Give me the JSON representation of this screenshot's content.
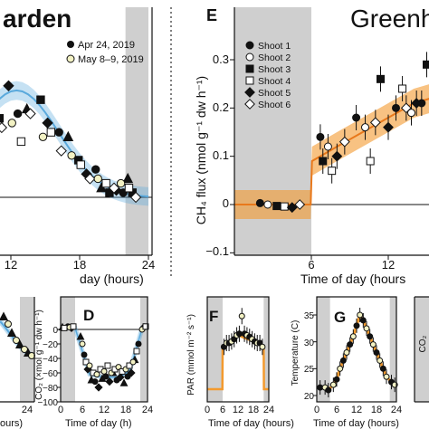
{
  "panels": {
    "garden": {
      "title": "arden",
      "xlabel": "day (hours)",
      "xticks": [
        "12",
        "18",
        "24"
      ],
      "legend": [
        "Apr 24, 2019",
        "May 8–9, 2019"
      ]
    },
    "E": {
      "letter": "E",
      "title": "Greenh",
      "ylabel": "CH₄ flux (nmol g⁻¹ dw h⁻¹)",
      "xlabel": "Time of day (hours",
      "xticks": [
        "6",
        "12"
      ],
      "yticks": [
        "0.3",
        "0.2",
        "0.1",
        "0",
        "−0.1"
      ],
      "legend": [
        "Shoot 1",
        "Shoot 2",
        "Shoot 3",
        "Shoot 4",
        "Shoot 5",
        "Shoot 6"
      ]
    },
    "partial": {
      "xlabel": "ours)",
      "xticks": [
        "24"
      ]
    },
    "D": {
      "letter": "D",
      "ylabel": "CO₂ (×mol g⁻¹ dw h⁻¹)",
      "xlabel": "Time of day (h)",
      "xticks": [
        "0",
        "6",
        "12",
        "18",
        "24"
      ],
      "yticks": [
        "0",
        "−20",
        "−40",
        "−60",
        "−80",
        "−100"
      ]
    },
    "F": {
      "letter": "F",
      "ylabel": "PAR (mmol m⁻² s⁻¹)",
      "xlabel": "Time of day (hours)",
      "xticks": [
        "0",
        "6",
        "12",
        "18",
        "24"
      ]
    },
    "G": {
      "letter": "G",
      "ylabel": "Temperature (C)",
      "xlabel": "Time of day (hours)",
      "xticks": [
        "0",
        "6",
        "12",
        "18",
        "24"
      ],
      "yticks": [
        "35",
        "30",
        "25",
        "20"
      ]
    },
    "H": {
      "ylabel": "CO₂"
    }
  },
  "chart_data": [
    {
      "panel": "garden (partial)",
      "type": "scatter",
      "x_range_visible": [
        9,
        24
      ],
      "y_range_visible": [
        -0.02,
        0.33
      ],
      "shaded_night": [
        22,
        24
      ],
      "fit_color": "#5aa9dc",
      "series": [
        {
          "name": "Apr 24, 2019",
          "marker": "filled",
          "x": [
            9.8,
            10.3,
            11.0,
            11.8,
            12.6,
            13.4,
            14.6,
            15.2,
            16.2,
            17.0,
            17.9,
            18.6,
            19.4,
            19.9,
            20.6,
            21.2,
            21.8,
            22.2,
            22.6
          ],
          "y": [
            0.26,
            0.2,
            0.17,
            0.24,
            0.18,
            0.19,
            0.21,
            0.16,
            0.14,
            0.13,
            0.08,
            0.05,
            0.06,
            0.02,
            0.01,
            0.015,
            0.01,
            0.04,
            0.01
          ]
        },
        {
          "name": "May 8–9, 2019",
          "marker": "open",
          "x": [
            9.7,
            10.4,
            11.2,
            12.1,
            12.9,
            13.7,
            14.8,
            15.5,
            16.4,
            17.3,
            18.1,
            18.9,
            19.6,
            20.3,
            21.0,
            21.6,
            22.3,
            22.9
          ],
          "y": [
            0.21,
            0.23,
            0.15,
            0.16,
            0.12,
            0.18,
            0.13,
            0.14,
            0.1,
            0.09,
            0.07,
            0.04,
            0.04,
            0.03,
            0.02,
            0.03,
            0.02,
            0.0
          ]
        }
      ]
    },
    {
      "panel": "E",
      "type": "scatter",
      "title": "Greenh",
      "xlabel": "Time of day (hours",
      "ylabel": "CH₄ flux (nmol g⁻¹ dw h⁻¹)",
      "x_range_visible": [
        0,
        15.3
      ],
      "ylim": [
        -0.1,
        0.35
      ],
      "shaded_night": [
        0,
        6
      ],
      "fit_color": "#f39a2e",
      "fit": {
        "x": [
          0,
          5.95,
          6.05,
          8,
          10,
          12,
          14,
          15.3
        ],
        "y": [
          0,
          0,
          0.09,
          0.12,
          0.15,
          0.18,
          0.21,
          0.22
        ],
        "band": 0.03
      },
      "series": [
        {
          "name": "Shoot 1",
          "marker": "circle-filled",
          "x": [
            2.0,
            6.7,
            9.5,
            12.6,
            14.6
          ],
          "y": [
            0.003,
            0.14,
            0.18,
            0.2,
            0.21
          ]
        },
        {
          "name": "Shoot 2",
          "marker": "circle-open",
          "x": [
            2.6,
            7.3,
            10.2,
            13.8
          ],
          "y": [
            0.0,
            0.12,
            0.16,
            0.19
          ]
        },
        {
          "name": "Shoot 3",
          "marker": "square-filled",
          "x": [
            3.3,
            6.9,
            11.4,
            15.0
          ],
          "y": [
            -0.003,
            0.09,
            0.26,
            0.29
          ]
        },
        {
          "name": "Shoot 4",
          "marker": "square-open",
          "x": [
            3.9,
            7.6,
            10.6,
            13.1
          ],
          "y": [
            -0.004,
            0.07,
            0.09,
            0.24
          ]
        },
        {
          "name": "Shoot 5",
          "marker": "diamond-filled",
          "x": [
            4.5,
            8.0,
            12.0,
            14.2
          ],
          "y": [
            -0.006,
            0.1,
            0.16,
            0.21
          ]
        },
        {
          "name": "Shoot 6",
          "marker": "diamond-open",
          "x": [
            5.1,
            8.6,
            11.0,
            13.4
          ],
          "y": [
            0.0,
            0.13,
            0.17,
            0.2
          ]
        }
      ]
    },
    {
      "panel": "D",
      "type": "scatter",
      "xlabel": "Time of day (h)",
      "ylabel": "CO₂ (×mol g⁻¹ dw h⁻¹)",
      "xlim": [
        0,
        24
      ],
      "ylim": [
        -100,
        5
      ],
      "shaded_night": [
        [
          0,
          4
        ],
        [
          22,
          24
        ]
      ],
      "series": [
        {
          "name": "filled",
          "x": [
            0.5,
            2,
            3,
            5.5,
            6.5,
            7.5,
            8.5,
            9.5,
            10.5,
            11.5,
            12.5,
            13.5,
            14.5,
            15.5,
            16.5,
            17.5,
            18.5,
            19.5,
            20.5,
            21.5,
            23
          ],
          "y": [
            3,
            4,
            2,
            -10,
            -35,
            -55,
            -70,
            -72,
            -80,
            -68,
            -65,
            -72,
            -60,
            -70,
            -66,
            -74,
            -65,
            -60,
            -42,
            -20,
            3
          ]
        },
        {
          "name": "open",
          "x": [
            1,
            2.5,
            3.5,
            6,
            7,
            8,
            9,
            10,
            11,
            12,
            13,
            14,
            15,
            16,
            17,
            18,
            19,
            20,
            21,
            22.5,
            23.5
          ],
          "y": [
            2,
            3,
            4,
            -20,
            -45,
            -50,
            -60,
            -62,
            -55,
            -58,
            -50,
            -60,
            -55,
            -52,
            -58,
            -55,
            -50,
            -45,
            -30,
            0,
            4
          ]
        }
      ]
    },
    {
      "panel": "F",
      "type": "scatter",
      "xlabel": "Time of day (hours)",
      "ylabel": "PAR (mmol m⁻² s⁻¹)",
      "xlim": [
        0,
        24
      ],
      "shaded_night": [
        [
          0,
          6
        ],
        [
          22,
          24
        ]
      ],
      "series": [
        {
          "name": "PAR",
          "x": [
            6.5,
            7.5,
            8.5,
            9.5,
            10.5,
            11.5,
            12.5,
            13.5,
            14.5,
            15.5,
            16.5,
            17.5,
            18.5,
            19.5,
            20.5,
            21.5
          ],
          "y": [
            0.55,
            0.6,
            0.6,
            0.62,
            0.65,
            0.7,
            0.72,
            0.95,
            0.72,
            0.7,
            0.68,
            0.65,
            0.62,
            0.6,
            0.6,
            0.55
          ]
        }
      ]
    },
    {
      "panel": "G",
      "type": "scatter",
      "xlabel": "Time of day (hours)",
      "ylabel": "Temperature (C)",
      "xlim": [
        0,
        24
      ],
      "ylim": [
        17.5,
        37
      ],
      "shaded_night": [
        [
          0,
          4
        ],
        [
          22,
          24
        ]
      ],
      "series": [
        {
          "name": "Temperature",
          "x": [
            1,
            2.5,
            3.5,
            5,
            6,
            7,
            8,
            9,
            10,
            11,
            12,
            13,
            14,
            15,
            16,
            17,
            18,
            19,
            20,
            21,
            22.5,
            23.5
          ],
          "y": [
            21.5,
            21.5,
            21,
            22,
            23,
            25,
            26.5,
            28,
            29.5,
            31,
            33,
            35,
            34,
            32.5,
            31,
            29.5,
            28,
            26.5,
            25,
            23.5,
            22.5,
            22
          ]
        }
      ]
    }
  ]
}
